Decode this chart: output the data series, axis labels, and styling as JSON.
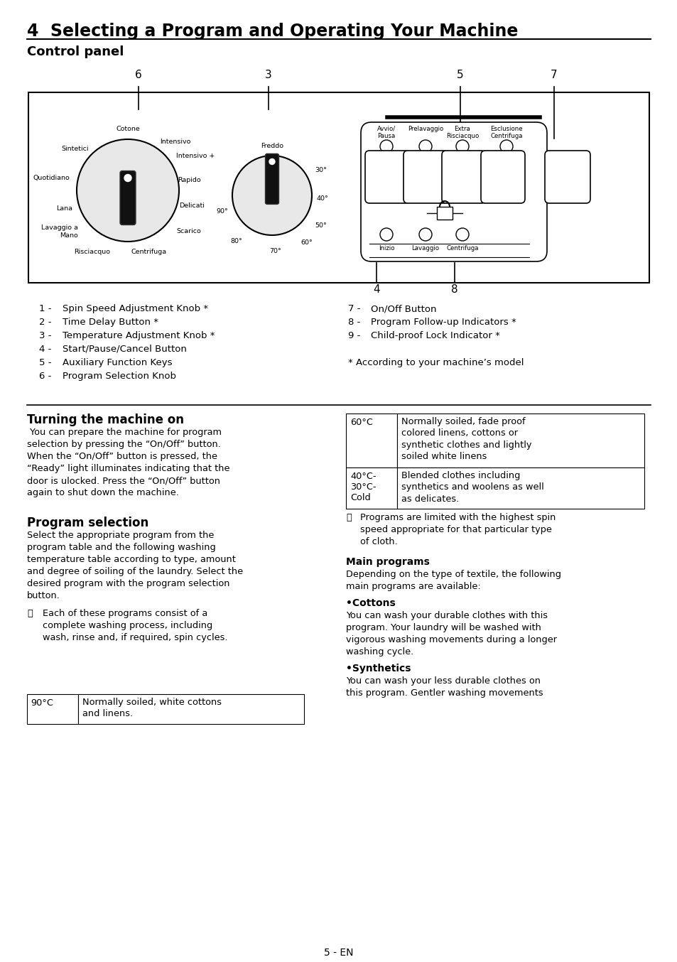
{
  "title": "4  Selecting a Program and Operating Your Machine",
  "subtitle": "Control panel",
  "bg_color": "#ffffff",
  "left_legend": [
    [
      "1 -",
      "Spin Speed Adjustment Knob *"
    ],
    [
      "2 -",
      "Time Delay Button *"
    ],
    [
      "3 -",
      "Temperature Adjustment Knob *"
    ],
    [
      "4 -",
      "Start/Pause/Cancel Button"
    ],
    [
      "5 -",
      "Auxiliary Function Keys"
    ],
    [
      "6 -",
      "Program Selection Knob"
    ]
  ],
  "right_legend": [
    [
      "7 -",
      "On/Off Button"
    ],
    [
      "8 -",
      "Program Follow-up Indicators *"
    ],
    [
      "9 -",
      "Child-proof Lock Indicator *"
    ]
  ],
  "asterisk_note": "* According to your machine’s model",
  "section1_title": "Turning the machine on",
  "section1_text": " You can prepare the machine for program\nselection by pressing the “On/Off” button.\nWhen the “On/Off” button is pressed, the\n“Ready” light illuminates indicating that the\ndoor is ulocked. Press the “On/Off” button\nagain to shut down the machine.",
  "section2_title": "Program selection",
  "section2_text": "Select the appropriate program from the\nprogram table and the following washing\ntemperature table according to type, amount\nand degree of soiling of the laundry. Select the\ndesired program with the program selection\nbutton.",
  "section2_note_sym": "ⓘ",
  "section2_note_text": "Each of these programs consist of a\ncomplete washing process, including\nwash, rinse and, if required, spin cycles.",
  "right_note_sym": "ⓘ",
  "right_note_text": "Programs are limited with the highest spin\nspeed appropriate for that particular type\nof cloth.",
  "main_programs_title": "Main programs",
  "main_programs_intro": "Depending on the type of textile, the following\nmain programs are available:",
  "cottons_title": "•Cottons",
  "cottons_text": "You can wash your durable clothes with this\nprogram. Your laundry will be washed with\nvigorous washing movements during a longer\nwashing cycle.",
  "synthetics_title": "•Synthetics",
  "synthetics_text": "You can wash your less durable clothes on\nthis program. Gentler washing movements",
  "page_footer": "5 - EN",
  "knob_labels": [
    [
      0,
      -82,
      "Cotone",
      "center",
      "bottom"
    ],
    [
      -55,
      -58,
      "Sintetici",
      "right",
      "center"
    ],
    [
      -82,
      -18,
      "Quotidiano",
      "right",
      "center"
    ],
    [
      -78,
      25,
      "Lana",
      "right",
      "center"
    ],
    [
      -70,
      58,
      "Lavaggio a\nMano",
      "right",
      "center"
    ],
    [
      -25,
      82,
      "Risciacquo",
      "right",
      "top"
    ],
    [
      30,
      82,
      "Centrifuga",
      "center",
      "top"
    ],
    [
      68,
      58,
      "Scarico",
      "left",
      "center"
    ],
    [
      72,
      22,
      "Delicati",
      "left",
      "center"
    ],
    [
      70,
      -15,
      "Rapido",
      "left",
      "center"
    ],
    [
      68,
      -48,
      "Intensivo +",
      "left",
      "center"
    ],
    [
      45,
      -68,
      "Intensivo",
      "left",
      "center"
    ]
  ]
}
